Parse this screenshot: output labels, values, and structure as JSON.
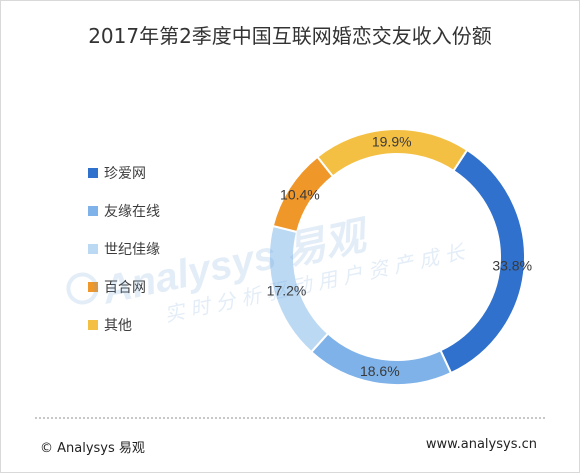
{
  "chart_data": {
    "type": "pie",
    "title": "2017年第2季度中国互联网婚恋交友收入份额",
    "categories": [
      "珍爱网",
      "友缘在线",
      "世纪佳缘",
      "百合网",
      "其他"
    ],
    "values": [
      33.8,
      18.6,
      17.2,
      10.4,
      19.9
    ],
    "value_labels": [
      "33.8%",
      "18.6%",
      "17.2%",
      "10.4%",
      "19.9%"
    ],
    "colors": [
      "#2f71cc",
      "#7eb2e9",
      "#bcd9f3",
      "#f0972a",
      "#f4c043"
    ],
    "legend_position": "left",
    "donut": true
  },
  "watermark": {
    "main": "Analysys 易观",
    "sub": "实时分析驱动用户资产成长"
  },
  "footer": {
    "left": "© Analysys 易观",
    "right": "www.analysys.cn"
  }
}
